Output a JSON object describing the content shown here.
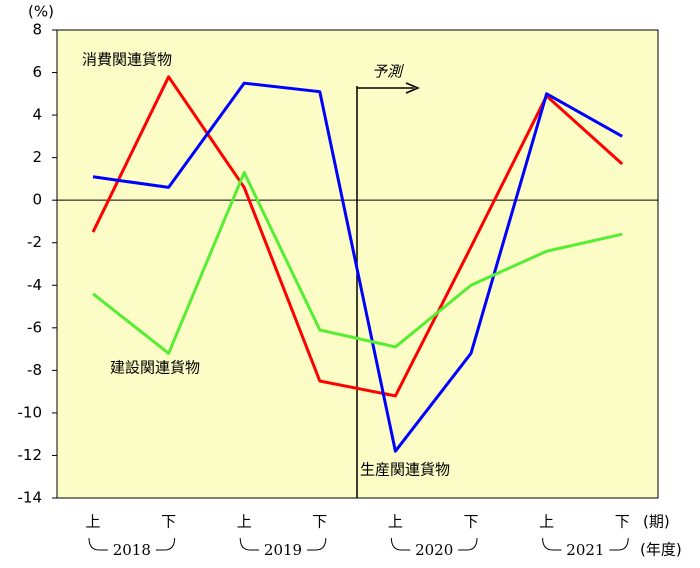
{
  "chart_data": {
    "type": "line",
    "y_label": "(%)",
    "x_label": "(期)",
    "year_label": "(年度)",
    "annotation": "予測",
    "categories": [
      "上",
      "下",
      "上",
      "下",
      "上",
      "下",
      "上",
      "下"
    ],
    "years": [
      "2018",
      "2019",
      "2020",
      "2021"
    ],
    "series": [
      {
        "name": "消費関連貨物",
        "color": "#ff0000",
        "values": [
          -1.5,
          5.8,
          0.6,
          -8.5,
          -9.2,
          -2.2,
          4.9,
          1.7
        ]
      },
      {
        "name": "生産関連貨物",
        "color": "#0000ff",
        "values": [
          1.1,
          0.6,
          5.5,
          5.1,
          -11.8,
          -7.2,
          5.0,
          3.0
        ]
      },
      {
        "name": "建設関連貨物",
        "color": "#55ee33",
        "values": [
          -4.4,
          -7.2,
          1.3,
          -6.1,
          -6.9,
          -4.0,
          -2.4,
          -1.6
        ]
      }
    ],
    "ylim": [
      -14,
      8
    ],
    "yticks": [
      -14,
      -12,
      -10,
      -8,
      -6,
      -4,
      -2,
      0,
      2,
      4,
      6,
      8
    ]
  }
}
